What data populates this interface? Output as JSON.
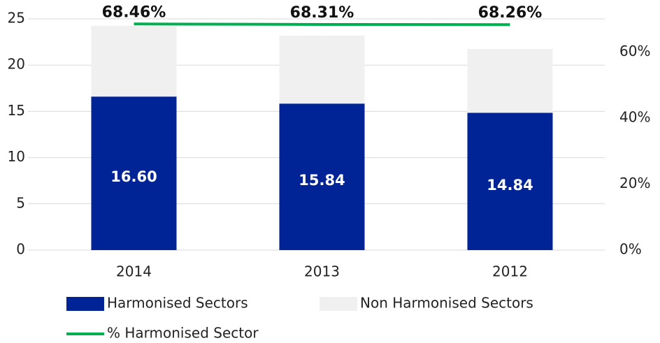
{
  "chart_data": {
    "type": "bar",
    "stacked": true,
    "categories": [
      "2014",
      "2013",
      "2012"
    ],
    "series": [
      {
        "name": "Harmonised Sectors",
        "color": "#002395",
        "values": [
          16.6,
          15.84,
          14.84
        ],
        "value_labels": [
          "16.60",
          "15.84",
          "14.84"
        ]
      },
      {
        "name": "Non Harmonised Sectors",
        "color": "#f0f0f0",
        "values": [
          7.65,
          7.35,
          6.9
        ]
      },
      {
        "name": "% Harmonised Sector",
        "type": "line",
        "axis": "y2",
        "color": "#00b050",
        "values": [
          68.46,
          68.31,
          68.26
        ],
        "value_labels": [
          "68.46%",
          "68.31%",
          "68.26%"
        ]
      }
    ],
    "ylim": [
      0,
      25
    ],
    "yticks": [
      0,
      5,
      10,
      15,
      20,
      25
    ],
    "y2lim": [
      0,
      70
    ],
    "y2ticks": [
      {
        "value": 0,
        "label": "0%"
      },
      {
        "value": 20,
        "label": "20%"
      },
      {
        "value": 40,
        "label": "40%"
      },
      {
        "value": 60,
        "label": "60%"
      }
    ],
    "grid": true
  }
}
